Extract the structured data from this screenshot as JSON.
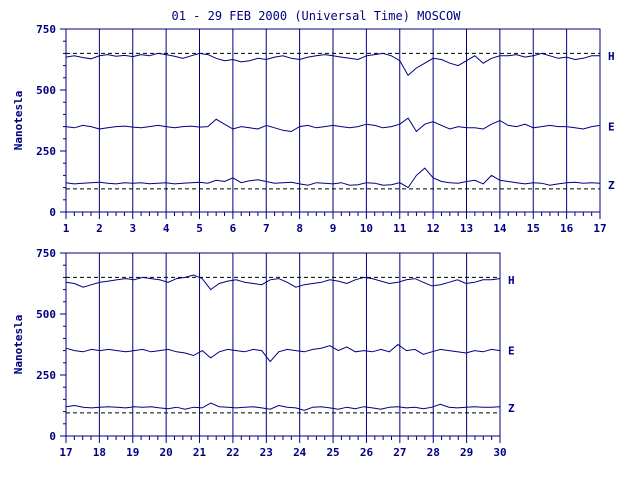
{
  "title": "01 - 29 FEB 2000 (Universal Time) MOSCOW",
  "chart_data": [
    {
      "type": "line",
      "panel": "top",
      "ylabel": "Nanotesla",
      "ylim": [
        0,
        750
      ],
      "yticks": [
        "0",
        "250",
        "500",
        "750"
      ],
      "xlim": [
        1,
        17
      ],
      "xticks": [
        "1",
        "2",
        "3",
        "4",
        "5",
        "6",
        "7",
        "8",
        "9",
        "10",
        "11",
        "12",
        "13",
        "14",
        "15",
        "16",
        "17"
      ],
      "reference_lines": [
        650,
        95
      ],
      "series": [
        {
          "name": "H",
          "baseline": 640,
          "values": [
            635,
            640,
            633,
            628,
            640,
            645,
            638,
            642,
            637,
            645,
            640,
            650,
            645,
            638,
            630,
            640,
            650,
            645,
            630,
            620,
            625,
            615,
            620,
            630,
            625,
            635,
            640,
            630,
            625,
            635,
            640,
            645,
            640,
            635,
            630,
            625,
            640,
            645,
            650,
            640,
            620,
            560,
            590,
            610,
            630,
            625,
            610,
            600,
            620,
            640,
            610,
            630,
            640,
            640,
            645,
            635,
            640,
            650,
            640,
            630,
            635,
            625,
            630,
            640,
            640
          ]
        },
        {
          "name": "E",
          "baseline": 350,
          "values": [
            350,
            345,
            355,
            350,
            340,
            345,
            350,
            352,
            348,
            345,
            350,
            355,
            350,
            345,
            350,
            352,
            348,
            350,
            380,
            360,
            340,
            350,
            345,
            340,
            355,
            345,
            335,
            330,
            350,
            355,
            345,
            350,
            355,
            350,
            345,
            350,
            360,
            355,
            345,
            350,
            360,
            385,
            330,
            360,
            370,
            355,
            340,
            350,
            345,
            345,
            340,
            360,
            375,
            355,
            350,
            360,
            345,
            350,
            355,
            350,
            350,
            345,
            340,
            350,
            355
          ]
        },
        {
          "name": "Z",
          "baseline": 110,
          "values": [
            120,
            115,
            118,
            120,
            122,
            118,
            115,
            120,
            118,
            120,
            116,
            118,
            120,
            115,
            118,
            120,
            122,
            118,
            130,
            125,
            140,
            120,
            128,
            132,
            125,
            118,
            120,
            122,
            115,
            110,
            120,
            118,
            115,
            120,
            110,
            112,
            120,
            118,
            110,
            112,
            120,
            100,
            150,
            180,
            140,
            125,
            120,
            118,
            125,
            130,
            115,
            150,
            130,
            125,
            120,
            115,
            120,
            118,
            110,
            115,
            120,
            122,
            118,
            120,
            118
          ]
        }
      ]
    },
    {
      "type": "line",
      "panel": "bottom",
      "ylabel": "Nanotesla",
      "ylim": [
        0,
        750
      ],
      "yticks": [
        "0",
        "250",
        "500",
        "750"
      ],
      "xlim": [
        17,
        30
      ],
      "xticks": [
        "17",
        "18",
        "19",
        "20",
        "21",
        "22",
        "23",
        "24",
        "25",
        "26",
        "27",
        "28",
        "29",
        "30"
      ],
      "reference_lines": [
        650,
        95
      ],
      "series": [
        {
          "name": "H",
          "baseline": 640,
          "values": [
            630,
            625,
            610,
            620,
            630,
            635,
            640,
            645,
            640,
            650,
            645,
            640,
            630,
            645,
            650,
            660,
            645,
            600,
            625,
            635,
            640,
            630,
            625,
            620,
            640,
            645,
            630,
            610,
            620,
            625,
            630,
            640,
            635,
            625,
            640,
            650,
            645,
            635,
            625,
            630,
            640,
            645,
            630,
            615,
            620,
            630,
            640,
            625,
            630,
            640,
            640,
            645
          ]
        },
        {
          "name": "E",
          "baseline": 350,
          "values": [
            360,
            350,
            345,
            355,
            350,
            355,
            350,
            345,
            350,
            355,
            345,
            350,
            355,
            345,
            340,
            330,
            350,
            320,
            345,
            355,
            350,
            345,
            355,
            350,
            305,
            345,
            355,
            350,
            345,
            355,
            360,
            370,
            350,
            365,
            345,
            350,
            345,
            355,
            345,
            375,
            350,
            355,
            335,
            345,
            355,
            350,
            345,
            340,
            350,
            345,
            355,
            350
          ]
        },
        {
          "name": "Z",
          "baseline": 115,
          "values": [
            120,
            125,
            118,
            115,
            118,
            120,
            118,
            115,
            120,
            118,
            120,
            115,
            112,
            118,
            110,
            118,
            115,
            135,
            120,
            118,
            115,
            118,
            120,
            115,
            110,
            125,
            118,
            115,
            105,
            118,
            120,
            115,
            110,
            118,
            112,
            120,
            115,
            110,
            118,
            120,
            115,
            118,
            112,
            118,
            130,
            118,
            115,
            118,
            120,
            118,
            118,
            120
          ]
        }
      ]
    }
  ],
  "colors": {
    "line": "#000080",
    "axis": "#000080",
    "grid": "#000080"
  }
}
